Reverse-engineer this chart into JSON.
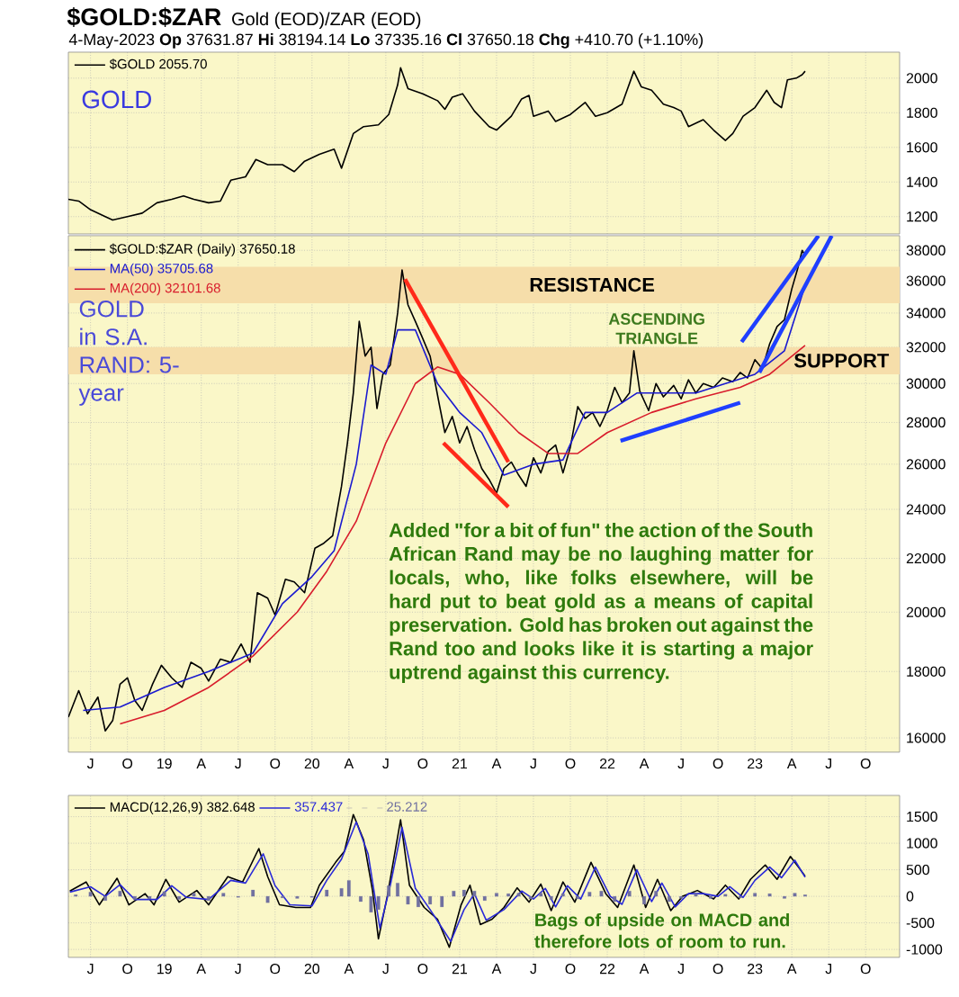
{
  "chart_data": [
    {
      "type": "line",
      "title": "$GOLD:$ZAR",
      "subtitle": "Gold (EOD)/ZAR (EOD)",
      "annotations": [
        "4-May-2023   **Op** 37631.87  **Hi** 38194.14  **Lo** 37335.16  **Cl** 37650.18  **Chg** +410.70 (+1.10%)",
        "GOLD"
      ],
      "xlim": [
        2018.35,
        2023.98
      ],
      "ylim": [
        1100,
        2150
      ],
      "xticks": [
        {
          "value": 2018.5,
          "label": null
        },
        {
          "value": 2018.75,
          "label": null
        },
        {
          "value": 2019,
          "label": null
        },
        {
          "value": 2019.25,
          "label": null
        },
        {
          "value": 2019.5,
          "label": null
        },
        {
          "value": 2019.75,
          "label": null
        },
        {
          "value": 2020,
          "label": null
        },
        {
          "value": 2020.25,
          "label": null
        },
        {
          "value": 2020.5,
          "label": null
        },
        {
          "value": 2020.75,
          "label": null
        },
        {
          "value": 2021,
          "label": null
        },
        {
          "value": 2021.25,
          "label": null
        },
        {
          "value": 2021.5,
          "label": null
        },
        {
          "value": 2021.75,
          "label": null
        },
        {
          "value": 2022,
          "label": null
        },
        {
          "value": 2022.25,
          "label": null
        },
        {
          "value": 2022.5,
          "label": null
        },
        {
          "value": 2022.75,
          "label": null
        },
        {
          "value": 2023,
          "label": null
        },
        {
          "value": 2023.25,
          "label": null
        },
        {
          "value": 2023.5,
          "label": null
        },
        {
          "value": 2023.75,
          "label": null
        }
      ],
      "yticks": [
        1200,
        1400,
        1600,
        1800,
        2000
      ],
      "tick_labels": "y",
      "grid": true,
      "legend": "top left",
      "series": [
        {
          "name": "$GOLD 2055.70",
          "color": "#000000",
          "x": [
            2018.35,
            2018.42,
            2018.5,
            2018.6,
            2018.65,
            2018.75,
            2018.85,
            2018.95,
            2019.05,
            2019.13,
            2019.2,
            2019.3,
            2019.38,
            2019.45,
            2019.55,
            2019.62,
            2019.7,
            2019.8,
            2019.88,
            2019.95,
            2020.05,
            2020.15,
            2020.2,
            2020.28,
            2020.35,
            2020.45,
            2020.52,
            2020.58,
            2020.6,
            2020.65,
            2020.75,
            2020.85,
            2020.9,
            2020.95,
            2021.02,
            2021.1,
            2021.2,
            2021.25,
            2021.35,
            2021.42,
            2021.47,
            2021.5,
            2021.6,
            2021.65,
            2021.75,
            2021.85,
            2021.92,
            2022.0,
            2022.1,
            2022.18,
            2022.23,
            2022.3,
            2022.38,
            2022.45,
            2022.5,
            2022.55,
            2022.65,
            2022.72,
            2022.8,
            2022.85,
            2022.92,
            2023.0,
            2023.08,
            2023.13,
            2023.18,
            2023.22,
            2023.28,
            2023.32,
            2023.34
          ],
          "values": [
            1300,
            1290,
            1240,
            1200,
            1180,
            1200,
            1220,
            1280,
            1300,
            1320,
            1300,
            1280,
            1290,
            1410,
            1430,
            1530,
            1500,
            1500,
            1460,
            1520,
            1560,
            1590,
            1480,
            1680,
            1720,
            1730,
            1790,
            1960,
            2060,
            1940,
            1910,
            1870,
            1820,
            1890,
            1910,
            1810,
            1720,
            1700,
            1780,
            1880,
            1900,
            1780,
            1810,
            1750,
            1790,
            1860,
            1780,
            1800,
            1850,
            2040,
            1950,
            1930,
            1850,
            1830,
            1810,
            1720,
            1760,
            1700,
            1640,
            1680,
            1780,
            1830,
            1930,
            1860,
            1830,
            1990,
            2000,
            2020,
            2040
          ]
        }
      ]
    },
    {
      "type": "line",
      "log": true,
      "grid": true,
      "legend": "top left",
      "annotations": [
        "GOLD in S.A. RAND: 5-year",
        "ASCENDING TRIANGLE",
        "Added \"for a bit of fun\" the action of the South African Rand may be no laughing matter for locals, who, like folks elsewhere, will be hard put to beat gold as a means of capital preservation. Gold has broken out against the Rand too and looks like it is starting a major uptrend against this currency."
      ],
      "bands": [
        {
          "axis": "y",
          "from": 34600,
          "to": 36900,
          "label": "RESISTANCE",
          "color": "#f6deaa"
        },
        {
          "axis": "y",
          "from": 30500,
          "to": 32000,
          "label": "SUPPORT",
          "color": "#f6deaa"
        }
      ],
      "xlim": [
        2018.35,
        2023.98
      ],
      "ylim": [
        15600,
        39000
      ],
      "xticks": [
        {
          "value": 2018.5,
          "label": "J"
        },
        {
          "value": 2018.75,
          "label": "O"
        },
        {
          "value": 2019,
          "label": "19"
        },
        {
          "value": 2019.25,
          "label": "A"
        },
        {
          "value": 2019.5,
          "label": "J"
        },
        {
          "value": 2019.75,
          "label": "O"
        },
        {
          "value": 2020,
          "label": "20"
        },
        {
          "value": 2020.25,
          "label": "A"
        },
        {
          "value": 2020.5,
          "label": "J"
        },
        {
          "value": 2020.75,
          "label": "O"
        },
        {
          "value": 2021,
          "label": "21"
        },
        {
          "value": 2021.25,
          "label": "A"
        },
        {
          "value": 2021.5,
          "label": "J"
        },
        {
          "value": 2021.75,
          "label": "O"
        },
        {
          "value": 2022,
          "label": "22"
        },
        {
          "value": 2022.25,
          "label": "A"
        },
        {
          "value": 2022.5,
          "label": "J"
        },
        {
          "value": 2022.75,
          "label": "O"
        },
        {
          "value": 2023,
          "label": "23"
        },
        {
          "value": 2023.25,
          "label": "A"
        },
        {
          "value": 2023.5,
          "label": "J"
        },
        {
          "value": 2023.75,
          "label": "O"
        }
      ],
      "yticks": [
        16000,
        18000,
        20000,
        22000,
        24000,
        26000,
        28000,
        30000,
        32000,
        34000,
        36000,
        38000
      ],
      "series": [
        {
          "name": "$GOLD:$ZAR (Daily) 37650.18",
          "color": "#000000",
          "x": [
            2018.35,
            2018.42,
            2018.48,
            2018.55,
            2018.6,
            2018.65,
            2018.7,
            2018.75,
            2018.8,
            2018.85,
            2018.92,
            2018.98,
            2019.05,
            2019.12,
            2019.18,
            2019.25,
            2019.3,
            2019.38,
            2019.45,
            2019.52,
            2019.58,
            2019.63,
            2019.7,
            2019.75,
            2019.82,
            2019.88,
            2019.95,
            2020.02,
            2020.08,
            2020.14,
            2020.2,
            2020.24,
            2020.28,
            2020.32,
            2020.36,
            2020.4,
            2020.44,
            2020.48,
            2020.53,
            2020.58,
            2020.61,
            2020.65,
            2020.7,
            2020.75,
            2020.8,
            2020.86,
            2020.9,
            2020.95,
            2021.0,
            2021.05,
            2021.1,
            2021.15,
            2021.2,
            2021.25,
            2021.3,
            2021.35,
            2021.4,
            2021.45,
            2021.5,
            2021.55,
            2021.6,
            2021.65,
            2021.7,
            2021.75,
            2021.8,
            2021.85,
            2021.9,
            2021.95,
            2022.0,
            2022.05,
            2022.1,
            2022.15,
            2022.18,
            2022.22,
            2022.28,
            2022.33,
            2022.38,
            2022.45,
            2022.5,
            2022.55,
            2022.6,
            2022.65,
            2022.72,
            2022.78,
            2022.85,
            2022.9,
            2022.95,
            2023.0,
            2023.05,
            2023.1,
            2023.15,
            2023.2,
            2023.25,
            2023.29,
            2023.32,
            2023.34
          ],
          "values": [
            16600,
            17400,
            16700,
            17200,
            16200,
            16500,
            17600,
            17800,
            17100,
            16800,
            17600,
            18200,
            17800,
            17500,
            18300,
            18100,
            17700,
            18400,
            18300,
            18900,
            18300,
            20700,
            20500,
            19900,
            21200,
            21100,
            20700,
            22400,
            22600,
            22900,
            25000,
            27000,
            29500,
            33500,
            31500,
            32000,
            28700,
            30500,
            31000,
            34000,
            36700,
            34500,
            33500,
            32500,
            31500,
            29000,
            27500,
            28300,
            27000,
            27800,
            26700,
            25800,
            25300,
            24700,
            25800,
            26100,
            25500,
            25000,
            26300,
            25600,
            26600,
            26900,
            25600,
            26800,
            28800,
            28200,
            28500,
            27800,
            28600,
            29800,
            29000,
            29500,
            31800,
            29600,
            28600,
            30000,
            29300,
            29900,
            29200,
            30200,
            29500,
            30000,
            29800,
            30300,
            30100,
            30600,
            30300,
            31300,
            30800,
            32200,
            33200,
            33600,
            35500,
            36800,
            38000,
            37650
          ]
        },
        {
          "name": "MA(50) 35705.68",
          "color": "#1a1ad0",
          "x": [
            2018.45,
            2018.7,
            2019.0,
            2019.3,
            2019.6,
            2019.8,
            2020.0,
            2020.15,
            2020.3,
            2020.4,
            2020.5,
            2020.58,
            2020.7,
            2020.85,
            2021.0,
            2021.15,
            2021.3,
            2021.5,
            2021.7,
            2021.85,
            2022.0,
            2022.2,
            2022.4,
            2022.6,
            2022.8,
            2023.0,
            2023.2,
            2023.34
          ],
          "values": [
            16800,
            16900,
            17500,
            18000,
            18600,
            20300,
            21300,
            22300,
            26000,
            31000,
            30500,
            33000,
            33000,
            30000,
            28500,
            27500,
            25500,
            26000,
            26200,
            28500,
            28500,
            29500,
            29500,
            29500,
            30000,
            30500,
            31800,
            35700
          ]
        },
        {
          "name": "MA(200) 32101.68",
          "color": "#d81c2c",
          "x": [
            2018.7,
            2019.0,
            2019.3,
            2019.6,
            2019.9,
            2020.1,
            2020.3,
            2020.5,
            2020.7,
            2020.85,
            2021.0,
            2021.2,
            2021.4,
            2021.6,
            2021.8,
            2022.0,
            2022.3,
            2022.6,
            2022.9,
            2023.1,
            2023.34
          ],
          "values": [
            16400,
            16800,
            17500,
            18500,
            20000,
            21500,
            23500,
            27000,
            30000,
            30900,
            30500,
            29000,
            27500,
            26500,
            26500,
            27500,
            28500,
            29200,
            29800,
            30500,
            32100
          ]
        },
        {
          "color": "#ff2a1a",
          "x": [
            2020.63,
            2021.33
          ],
          "values": [
            36100,
            26100
          ]
        },
        {
          "color": "#ff2a1a",
          "x": [
            2020.89,
            2021.33
          ],
          "values": [
            27000,
            24100
          ]
        },
        {
          "color": "#1f3fff",
          "x": [
            2022.09,
            2022.9
          ],
          "values": [
            27100,
            29000
          ]
        },
        {
          "color": "#1f3fff",
          "x": [
            2022.91,
            2023.43
          ],
          "values": [
            32300,
            39000
          ]
        },
        {
          "color": "#1f3fff",
          "x": [
            2023.03,
            2023.52
          ],
          "values": [
            30600,
            39000
          ]
        }
      ]
    },
    {
      "type": "line",
      "grid": true,
      "legend": "top left",
      "annotations": [
        "Bags of upside on MACD and therefore lots of room to run."
      ],
      "xlim": [
        2018.35,
        2023.98
      ],
      "ylim": [
        -1150,
        1900
      ],
      "xticks": [
        {
          "value": 2018.5,
          "label": "J"
        },
        {
          "value": 2018.75,
          "label": "O"
        },
        {
          "value": 2019,
          "label": "19"
        },
        {
          "value": 2019.25,
          "label": "A"
        },
        {
          "value": 2019.5,
          "label": "J"
        },
        {
          "value": 2019.75,
          "label": "O"
        },
        {
          "value": 2020,
          "label": "20"
        },
        {
          "value": 2020.25,
          "label": "A"
        },
        {
          "value": 2020.5,
          "label": "J"
        },
        {
          "value": 2020.75,
          "label": "O"
        },
        {
          "value": 2021,
          "label": "21"
        },
        {
          "value": 2021.25,
          "label": "A"
        },
        {
          "value": 2021.5,
          "label": "J"
        },
        {
          "value": 2021.75,
          "label": "O"
        },
        {
          "value": 2022,
          "label": "22"
        },
        {
          "value": 2022.25,
          "label": "A"
        },
        {
          "value": 2022.5,
          "label": "J"
        },
        {
          "value": 2022.75,
          "label": "O"
        },
        {
          "value": 2023,
          "label": "23"
        },
        {
          "value": 2023.25,
          "label": "A"
        },
        {
          "value": 2023.5,
          "label": "J"
        },
        {
          "value": 2023.75,
          "label": "O"
        }
      ],
      "yticks": [
        -1000,
        -500,
        0,
        500,
        1000,
        1500
      ],
      "series": [
        {
          "name": "MACD(12,26,9) 382.648",
          "color": "#000000",
          "x": [
            2018.36,
            2018.47,
            2018.56,
            2018.68,
            2018.76,
            2018.87,
            2018.93,
            2019.01,
            2019.1,
            2019.22,
            2019.3,
            2019.43,
            2019.53,
            2019.64,
            2019.7,
            2019.78,
            2019.89,
            2019.99,
            2020.05,
            2020.16,
            2020.22,
            2020.28,
            2020.35,
            2020.41,
            2020.45,
            2020.51,
            2020.6,
            2020.66,
            2020.76,
            2020.85,
            2020.93,
            2021.01,
            2021.07,
            2021.14,
            2021.22,
            2021.3,
            2021.39,
            2021.47,
            2021.55,
            2021.62,
            2021.7,
            2021.78,
            2021.89,
            2021.99,
            2022.07,
            2022.18,
            2022.26,
            2022.34,
            2022.43,
            2022.51,
            2022.61,
            2022.72,
            2022.8,
            2022.89,
            2022.97,
            2023.07,
            2023.15,
            2023.24,
            2023.3,
            2023.34
          ],
          "values": [
            100,
            270,
            -160,
            340,
            -160,
            50,
            -160,
            320,
            -110,
            110,
            -160,
            370,
            270,
            900,
            370,
            -160,
            -210,
            -210,
            210,
            640,
            850,
            1540,
            1060,
            110,
            -800,
            0,
            1440,
            210,
            -210,
            -430,
            -960,
            -160,
            210,
            -530,
            -430,
            -210,
            160,
            -110,
            230,
            -270,
            270,
            -110,
            640,
            50,
            -210,
            590,
            -210,
            320,
            -270,
            0,
            110,
            -50,
            210,
            -50,
            320,
            590,
            320,
            750,
            530,
            380
          ]
        },
        {
          "name": "357.437",
          "color": "#2a2ad8",
          "x": [
            2018.36,
            2018.5,
            2018.6,
            2018.7,
            2018.8,
            2018.95,
            2019.05,
            2019.15,
            2019.3,
            2019.45,
            2019.55,
            2019.67,
            2019.75,
            2019.85,
            2020.0,
            2020.1,
            2020.2,
            2020.3,
            2020.38,
            2020.46,
            2020.53,
            2020.61,
            2020.7,
            2020.8,
            2020.94,
            2021.03,
            2021.1,
            2021.18,
            2021.3,
            2021.42,
            2021.5,
            2021.58,
            2021.65,
            2021.73,
            2021.82,
            2021.92,
            2022.02,
            2022.1,
            2022.2,
            2022.3,
            2022.37,
            2022.46,
            2022.55,
            2022.65,
            2022.75,
            2022.83,
            2022.92,
            2023.0,
            2023.1,
            2023.18,
            2023.27,
            2023.34
          ],
          "values": [
            80,
            180,
            0,
            220,
            -60,
            -60,
            200,
            -20,
            -60,
            300,
            250,
            800,
            200,
            -160,
            -180,
            300,
            700,
            1400,
            800,
            -600,
            200,
            1300,
            150,
            -250,
            -850,
            -250,
            50,
            -450,
            -250,
            100,
            -50,
            150,
            -200,
            200,
            -50,
            550,
            0,
            -150,
            500,
            -100,
            250,
            -200,
            50,
            50,
            0,
            180,
            -20,
            300,
            550,
            350,
            680,
            360
          ]
        },
        {
          "name": "25.212",
          "type": "bar",
          "color": "#7070a0",
          "x": [
            2018.4,
            2018.5,
            2018.6,
            2018.7,
            2018.8,
            2018.9,
            2019.0,
            2019.1,
            2019.2,
            2019.3,
            2019.4,
            2019.5,
            2019.6,
            2019.7,
            2019.8,
            2019.9,
            2020.0,
            2020.1,
            2020.2,
            2020.25,
            2020.33,
            2020.4,
            2020.45,
            2020.52,
            2020.58,
            2020.65,
            2020.72,
            2020.8,
            2020.88,
            2020.96,
            2021.03,
            2021.1,
            2021.17,
            2021.25,
            2021.33,
            2021.4,
            2021.48,
            2021.55,
            2021.62,
            2021.7,
            2021.8,
            2021.88,
            2021.96,
            2022.05,
            2022.15,
            2022.25,
            2022.33,
            2022.42,
            2022.5,
            2022.6,
            2022.7,
            2022.8,
            2022.9,
            2023.0,
            2023.1,
            2023.2,
            2023.27,
            2023.34
          ],
          "values": [
            30,
            80,
            -80,
            100,
            -60,
            -50,
            90,
            -60,
            60,
            -80,
            60,
            -20,
            120,
            -120,
            -30,
            -40,
            -20,
            120,
            150,
            300,
            -100,
            -300,
            -250,
            200,
            250,
            -150,
            -200,
            -150,
            -200,
            100,
            120,
            100,
            -80,
            60,
            50,
            60,
            -50,
            60,
            -60,
            50,
            -50,
            80,
            100,
            -100,
            100,
            -150,
            100,
            -100,
            -40,
            50,
            -40,
            40,
            -30,
            60,
            50,
            -40,
            60,
            30
          ]
        }
      ]
    }
  ]
}
